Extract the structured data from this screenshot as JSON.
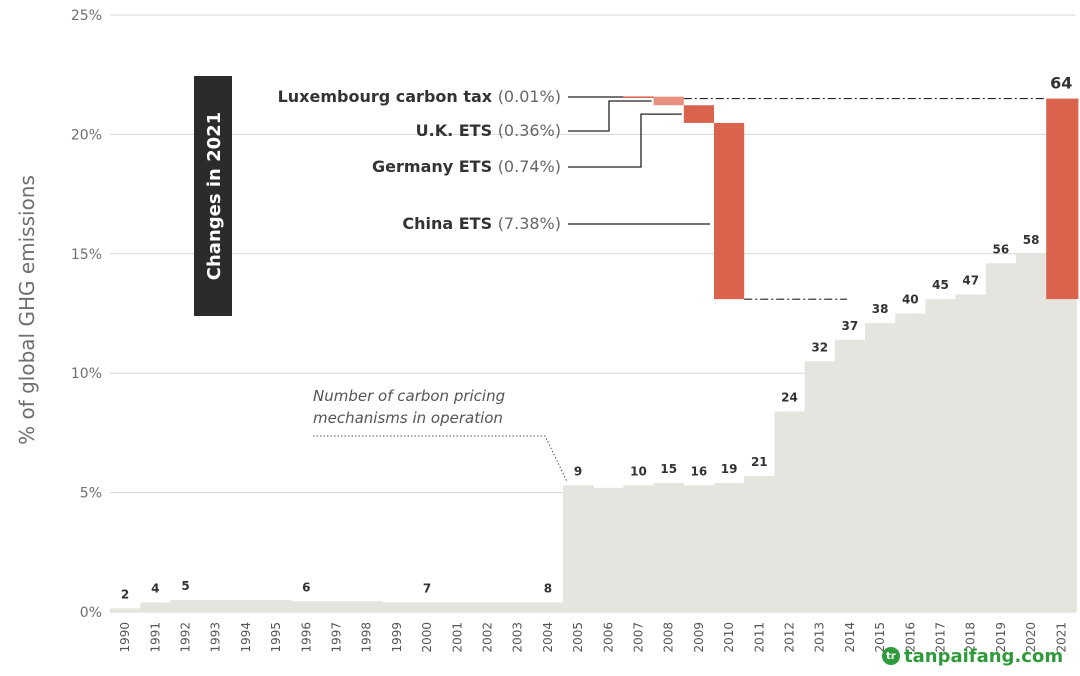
{
  "chart_data": {
    "type": "area",
    "ylabel": "% of global GHG emissions",
    "ylim": [
      0,
      25
    ],
    "yticks": [
      "0%",
      "5%",
      "10%",
      "15%",
      "20%",
      "25%"
    ],
    "ytick_values": [
      0,
      5,
      10,
      15,
      20,
      25
    ],
    "grid": true,
    "categories": [
      "1990",
      "1991",
      "1992",
      "1993",
      "1994",
      "1995",
      "1996",
      "1997",
      "1998",
      "1999",
      "2000",
      "2001",
      "2002",
      "2003",
      "2004",
      "2005",
      "2006",
      "2007",
      "2008",
      "2009",
      "2010",
      "2011",
      "2012",
      "2013",
      "2014",
      "2015",
      "2016",
      "2017",
      "2018",
      "2019",
      "2020",
      "2021"
    ],
    "values": [
      0.15,
      0.4,
      0.5,
      0.5,
      0.5,
      0.5,
      0.45,
      0.45,
      0.45,
      0.4,
      0.4,
      0.4,
      0.4,
      0.4,
      0.4,
      5.3,
      5.2,
      5.3,
      5.4,
      5.3,
      5.4,
      5.7,
      8.4,
      10.5,
      11.4,
      12.1,
      12.5,
      13.1,
      13.3,
      14.6,
      15.0,
      13.1
    ],
    "counts": [
      "2",
      "4",
      "5",
      "",
      "",
      "",
      "6",
      "",
      "",
      "",
      "7",
      "",
      "",
      "",
      "8",
      "9",
      "",
      "10",
      "15",
      "16",
      "19",
      "21",
      "24",
      "32",
      "37",
      "38",
      "40",
      "45",
      "47",
      "56",
      "58",
      "64"
    ],
    "bar_color": "#e6e4df",
    "accent_color": "#d9634c",
    "accent_light_color": "#e8907f",
    "annotation": [
      "Number of carbon pricing",
      "mechanisms in operation"
    ],
    "side_label": "Changes in 2021",
    "changes_2021": [
      {
        "name": "Luxembourg carbon tax",
        "pct": "(0.01%)",
        "value": 0.01
      },
      {
        "name": "U.K. ETS",
        "pct": "(0.36%)",
        "value": 0.36
      },
      {
        "name": "Germany ETS",
        "pct": "(0.74%)",
        "value": 0.74
      },
      {
        "name": "China ETS",
        "pct": "(7.38%)",
        "value": 7.38
      }
    ],
    "total_2021": 21.5
  },
  "watermark": {
    "icon": "leaf-icon",
    "glyph": "tr",
    "text": "tanpaifang.com",
    "color": "#2e9a3a"
  }
}
